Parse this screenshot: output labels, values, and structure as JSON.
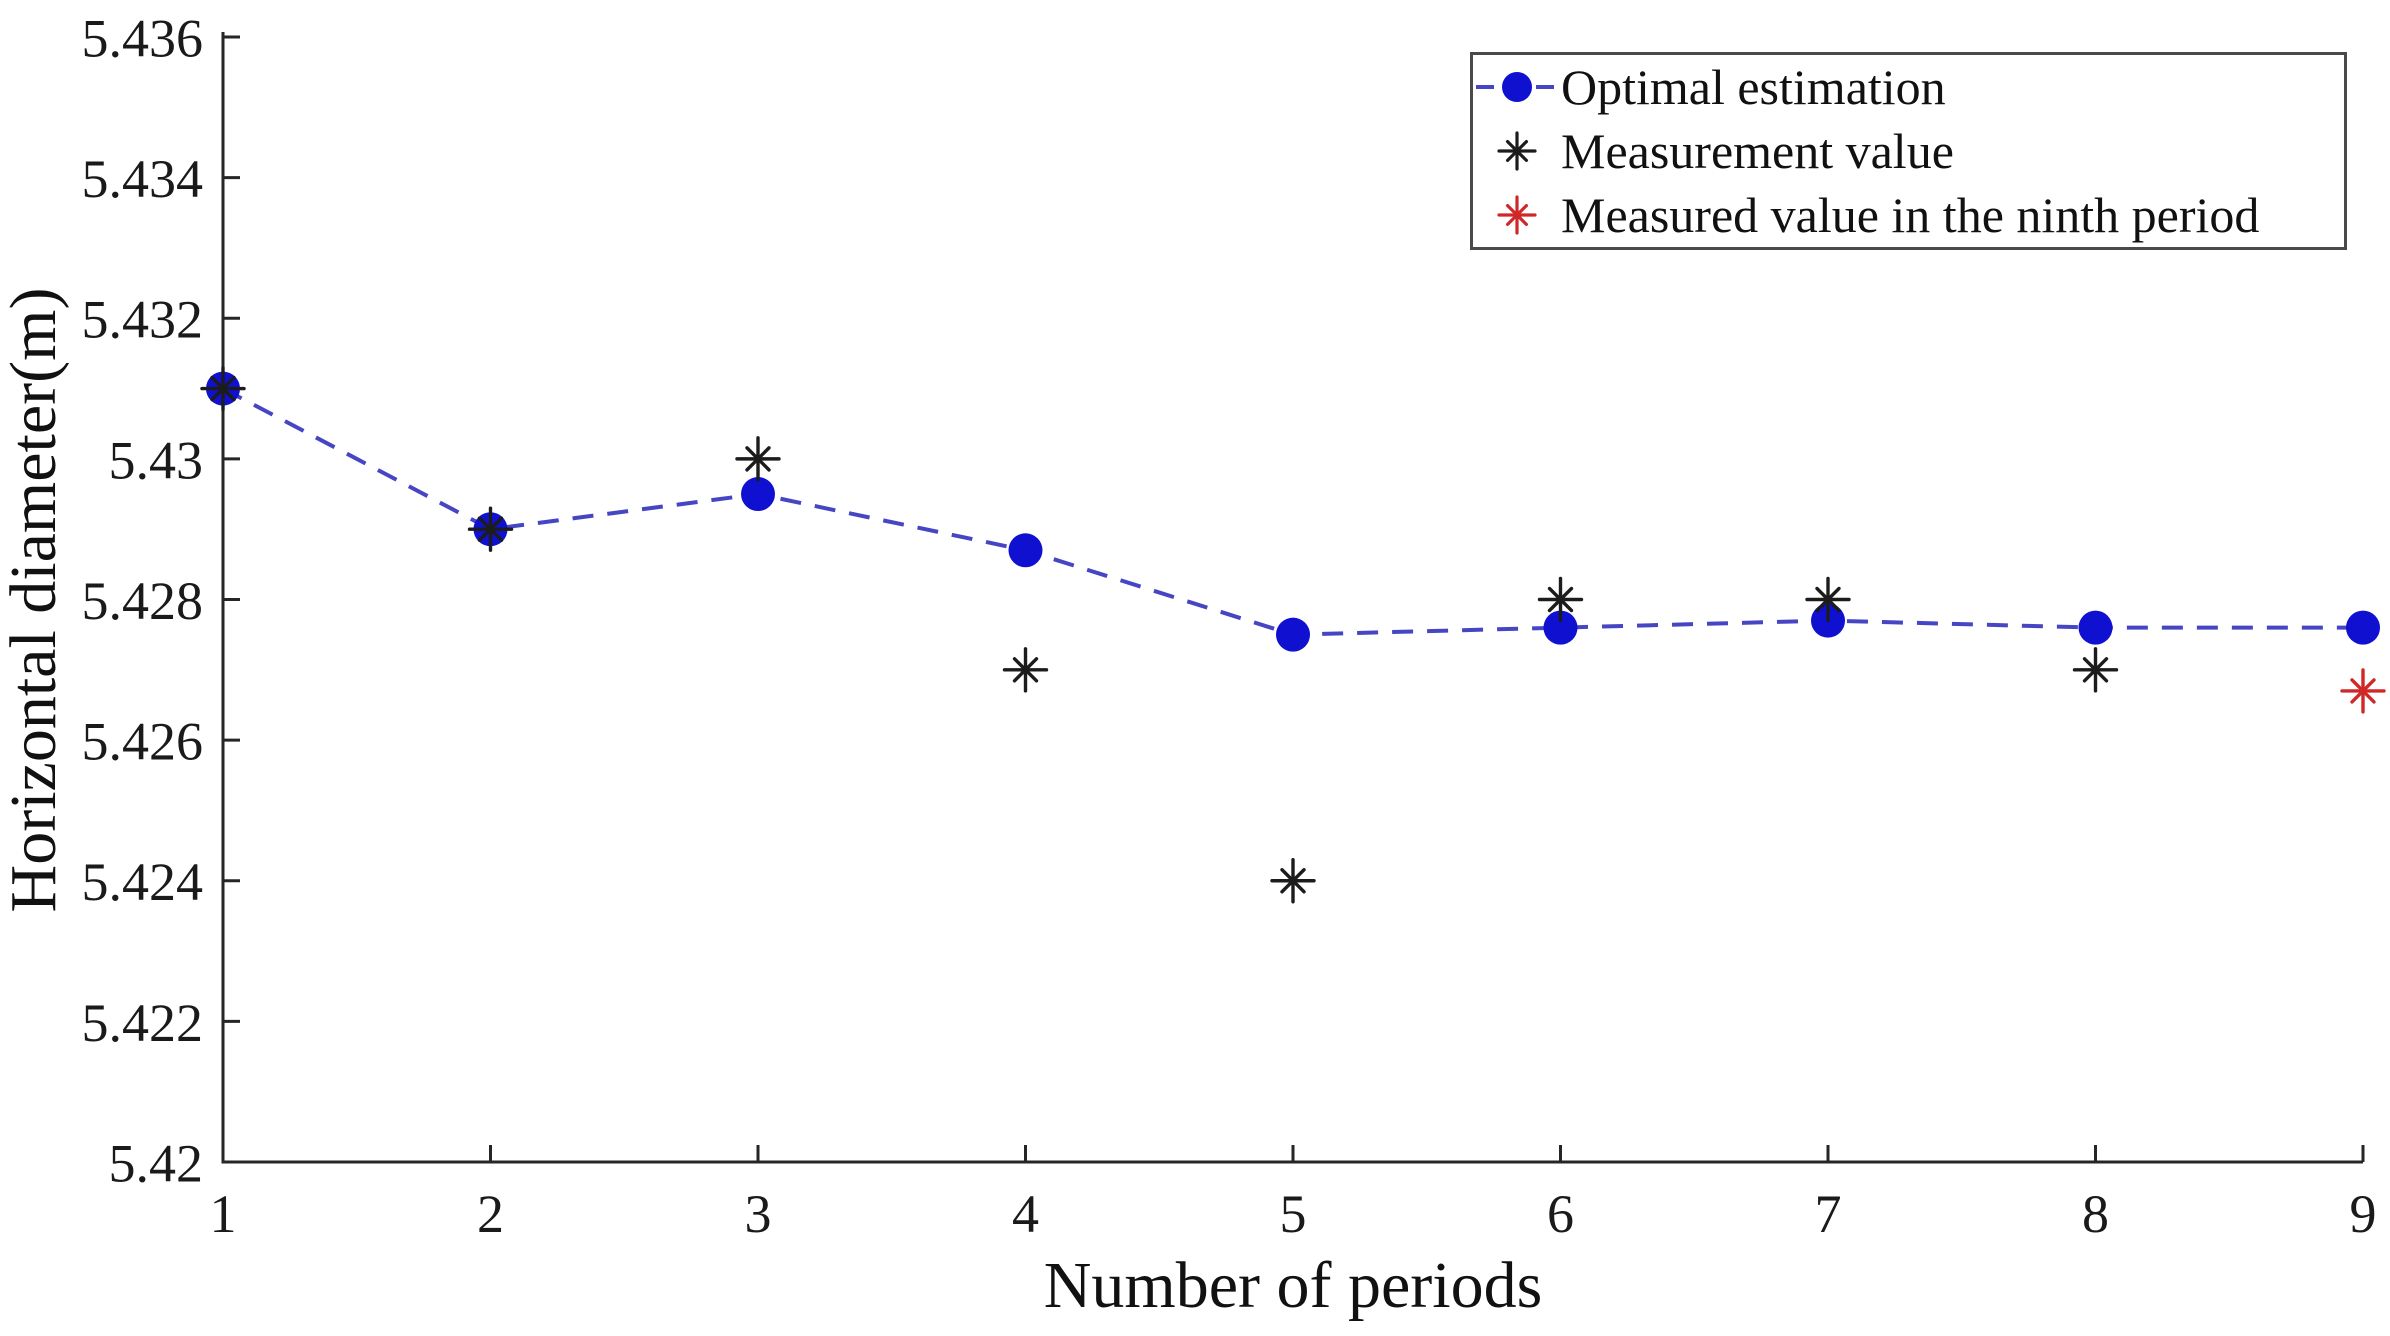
{
  "chart_data": {
    "type": "line",
    "title": "",
    "xlabel": "Number of periods",
    "ylabel": "Horizontal diameter(m)",
    "xlim": [
      1,
      9
    ],
    "ylim": [
      5.42,
      5.436
    ],
    "grid": false,
    "axis_color": "#262626",
    "xticks": [
      1,
      2,
      3,
      4,
      5,
      6,
      7,
      8,
      9
    ],
    "yticks": [
      {
        "value": 5.42,
        "label": "5.42"
      },
      {
        "value": 5.422,
        "label": "5.422"
      },
      {
        "value": 5.424,
        "label": "5.424"
      },
      {
        "value": 5.426,
        "label": "5.426"
      },
      {
        "value": 5.428,
        "label": "5.428"
      },
      {
        "value": 5.43,
        "label": "5.43"
      },
      {
        "value": 5.432,
        "label": "5.432"
      },
      {
        "value": 5.434,
        "label": "5.434"
      },
      {
        "value": 5.436,
        "label": "5.436"
      }
    ],
    "legend": {
      "position": "top-right",
      "border_color": "#4a4a4a",
      "background": "#ffffff"
    },
    "series": [
      {
        "name": "Optimal estimation",
        "type": "line+scatter",
        "marker": "filled-circle",
        "marker_color": "#0f10d0",
        "line_color": "#4646c4",
        "line_style": "dashed",
        "x": [
          1,
          2,
          3,
          4,
          5,
          6,
          7,
          8,
          9
        ],
        "y": [
          5.431,
          5.429,
          5.4295,
          5.4287,
          5.4275,
          5.4276,
          5.4277,
          5.4276,
          5.4276
        ]
      },
      {
        "name": "Measurement value",
        "type": "scatter",
        "marker": "asterisk",
        "marker_color": "#1c1c1c",
        "x": [
          1,
          2,
          3,
          4,
          5,
          6,
          7,
          8
        ],
        "y": [
          5.431,
          5.429,
          5.43,
          5.427,
          5.424,
          5.428,
          5.428,
          5.427
        ]
      },
      {
        "name": "Measured value in the ninth period",
        "type": "scatter",
        "marker": "asterisk",
        "marker_color": "#d02828",
        "x": [
          9
        ],
        "y": [
          5.4267
        ]
      }
    ]
  }
}
